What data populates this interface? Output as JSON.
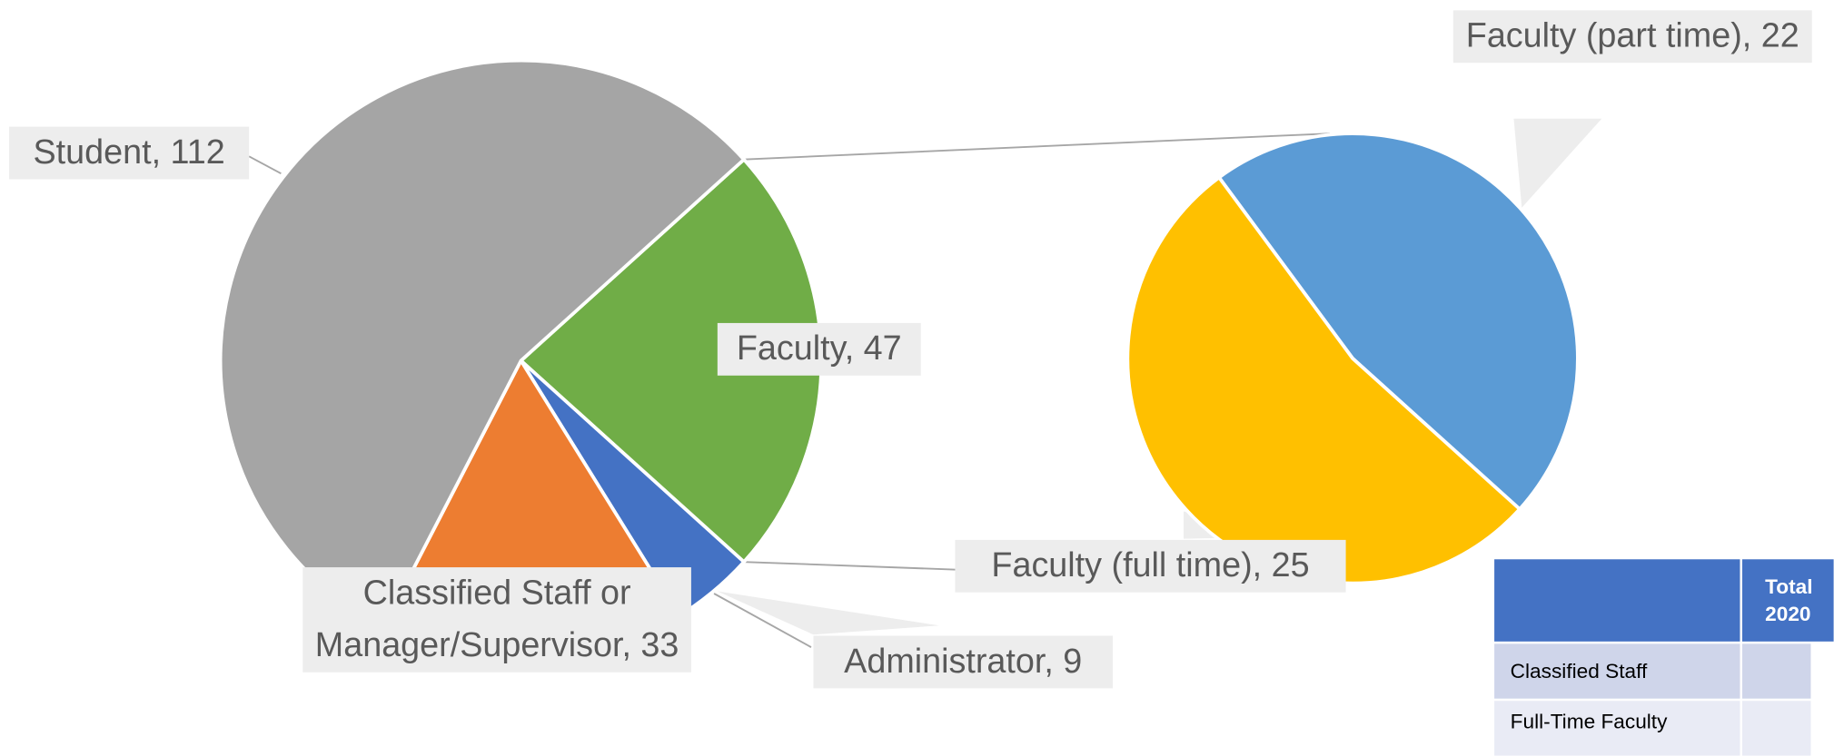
{
  "chart_data": {
    "type": "pie-of-pie",
    "pies": [
      {
        "categories": [
          "Faculty",
          "Administrator",
          "Classified Staff or Manager/Supervisor",
          "Student"
        ],
        "values": [
          47,
          9,
          33,
          112
        ],
        "colors": [
          "#70ad47",
          "#4472c4",
          "#ed7d31",
          "#a5a5a5"
        ],
        "value_labels": [
          "Faculty, 47",
          "Administrator, 9",
          "Classified Staff or Manager/Supervisor, 33",
          "Student, 112"
        ]
      },
      {
        "categories": [
          "Faculty (part time)",
          "Faculty (full time)"
        ],
        "values": [
          22,
          25
        ],
        "colors": [
          "#5b9bd5",
          "#ffc000"
        ],
        "value_labels": [
          "Faculty (part time), 22",
          "Faculty (full time), 25"
        ]
      }
    ]
  },
  "table": {
    "header": "Total 2020",
    "rows": [
      "Classified Staff",
      "Full-Time Faculty"
    ]
  }
}
